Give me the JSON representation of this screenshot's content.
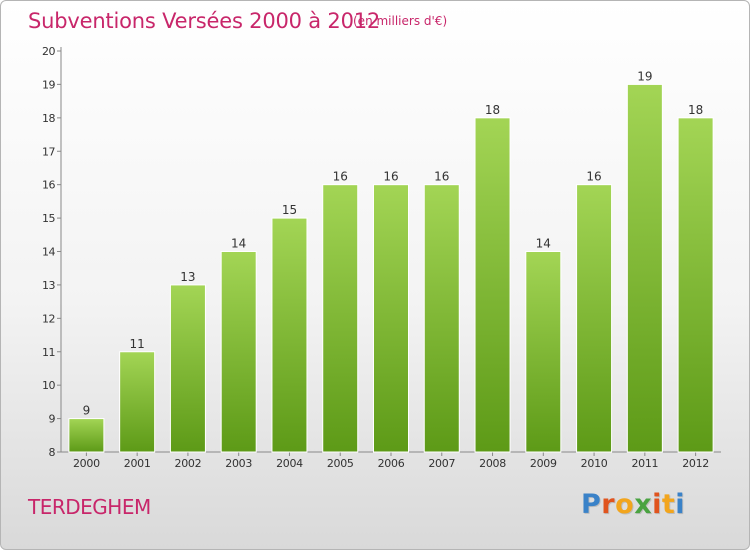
{
  "header": {
    "title": "Subventions Versées 2000 à 2012",
    "subtitle": "(en milliers d'€)"
  },
  "footer": {
    "commune": "TERDEGHEM",
    "logo_text": "Proxiti"
  },
  "colors": {
    "title": "#c8266a",
    "bar_top": "#a3d555",
    "bar_bottom": "#5d9a17",
    "logo_letters": [
      "#3a82c8",
      "#e0541e",
      "#f2a51d",
      "#4aa341",
      "#e0541e",
      "#f2a51d",
      "#3a82c8"
    ]
  },
  "chart_data": {
    "type": "bar",
    "title": "Subventions Versées 2000 à 2012",
    "xlabel": "",
    "ylabel": "",
    "categories": [
      "2000",
      "2001",
      "2002",
      "2003",
      "2004",
      "2005",
      "2006",
      "2007",
      "2008",
      "2009",
      "2010",
      "2011",
      "2012"
    ],
    "values": [
      9,
      11,
      13,
      14,
      15,
      16,
      16,
      16,
      18,
      14,
      16,
      19,
      18
    ],
    "ylim": [
      8,
      20
    ],
    "yticks": [
      8,
      9,
      10,
      11,
      12,
      13,
      14,
      15,
      16,
      17,
      18,
      19,
      20
    ],
    "grid": false,
    "data_labels": true
  }
}
